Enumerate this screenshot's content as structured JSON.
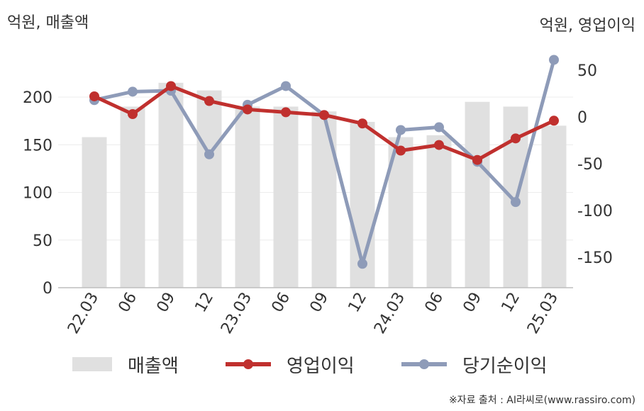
{
  "units": {
    "left": "억원, 매출액",
    "right": "억원, 영업이익"
  },
  "source": "※자료 출처 : AI라씨로(www.rassiro.com)",
  "legend": [
    {
      "label": "매출액",
      "kind": "bar",
      "color": "#e0e0e0"
    },
    {
      "label": "영업이익",
      "kind": "line",
      "color": "#c0302e"
    },
    {
      "label": "당기순이익",
      "kind": "line",
      "color": "#8e9bb8"
    }
  ],
  "chart_data": {
    "type": "bar+line",
    "categories": [
      "22.03",
      "06",
      "09",
      "12",
      "23.03",
      "06",
      "09",
      "12",
      "24.03",
      "06",
      "09",
      "12",
      "25.03"
    ],
    "left_axis": {
      "ticks": [
        0,
        50,
        100,
        150,
        200
      ],
      "range": [
        0,
        250
      ]
    },
    "right_axis": {
      "ticks": [
        50,
        0,
        -50,
        -100,
        -150
      ],
      "range": [
        -180,
        80
      ]
    },
    "series": [
      {
        "name": "매출액",
        "type": "bar",
        "axis": "left",
        "color": "#e0e0e0",
        "values": [
          158,
          190,
          215,
          207,
          190,
          190,
          185,
          174,
          158,
          160,
          195,
          190,
          170
        ]
      },
      {
        "name": "영업이익",
        "type": "line",
        "axis": "right",
        "color": "#c0302e",
        "values": [
          22,
          3,
          33,
          17,
          8,
          5,
          2,
          -7,
          -36,
          -30,
          -46,
          -23,
          -4
        ]
      },
      {
        "name": "당기순이익",
        "type": "line",
        "axis": "right",
        "color": "#8e9bb8",
        "values": [
          18,
          27,
          28,
          -40,
          13,
          33,
          2,
          -157,
          -14,
          -11,
          -48,
          -91,
          61
        ]
      }
    ],
    "grid": true
  }
}
